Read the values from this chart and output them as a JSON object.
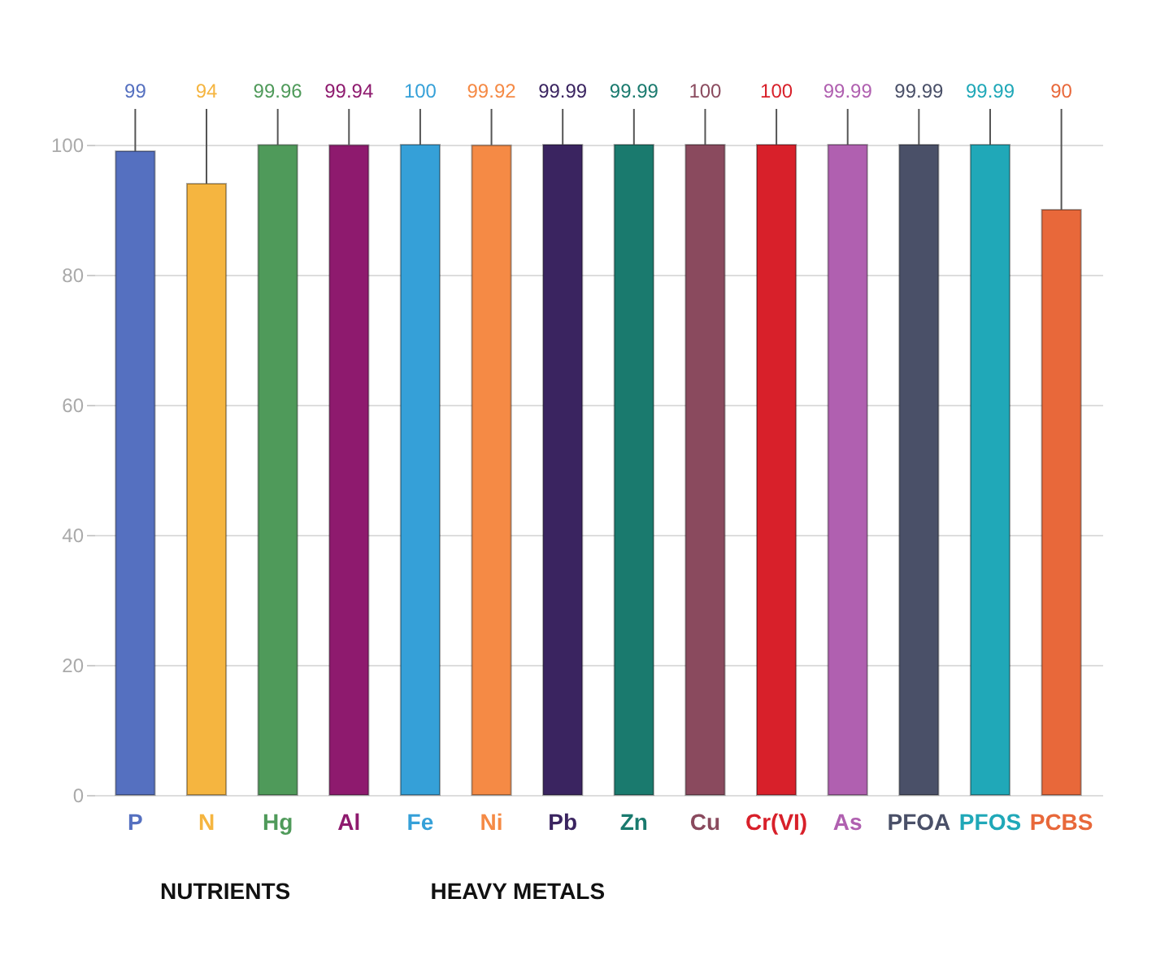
{
  "chart_data": {
    "type": "bar",
    "categories": [
      "P",
      "N",
      "Hg",
      "Al",
      "Fe",
      "Ni",
      "Pb",
      "Zn",
      "Cu",
      "Cr(VI)",
      "As",
      "PFOA",
      "PFOS",
      "PCBS"
    ],
    "values": [
      99,
      94,
      99.96,
      99.94,
      100,
      99.92,
      99.99,
      99.99,
      100,
      100,
      99.99,
      99.99,
      99.99,
      90
    ],
    "colors": [
      "#5570c0",
      "#f5b540",
      "#4f9a5a",
      "#8e1a6e",
      "#35a0d8",
      "#f58a45",
      "#3a2460",
      "#1a7a6e",
      "#8a4a5e",
      "#d8202a",
      "#b060b0",
      "#4a5068",
      "#20a8b8",
      "#e8683a"
    ],
    "ylim": [
      0,
      100
    ],
    "yticks": [
      0,
      20,
      40,
      60,
      80,
      100
    ],
    "grid": "y",
    "data_labels": true,
    "annotations": [
      "NUTRIENTS",
      "HEAVY METALS"
    ]
  }
}
